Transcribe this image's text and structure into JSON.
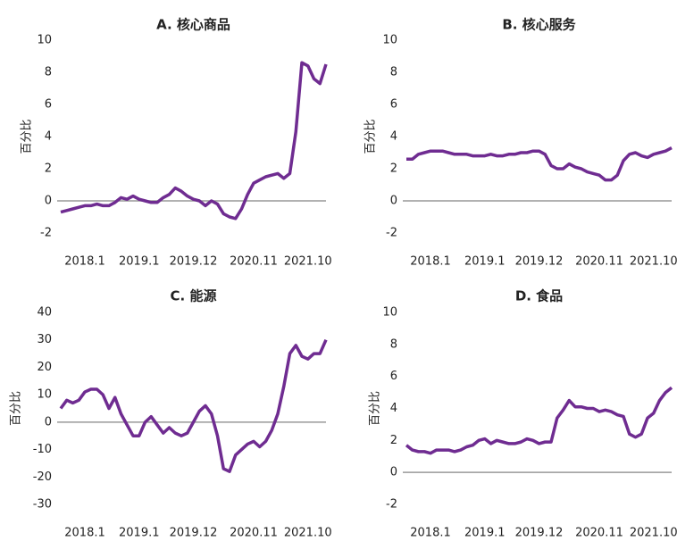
{
  "chart_data": [
    {
      "type": "line",
      "title": "A. 核心商品",
      "ylabel": "百分比",
      "categories": [
        null,
        null,
        null,
        null,
        "2018.1",
        null,
        null,
        null,
        null,
        null,
        null,
        null,
        null,
        "2019.1",
        null,
        null,
        null,
        null,
        null,
        null,
        null,
        null,
        "2019.12",
        null,
        null,
        null,
        null,
        null,
        null,
        null,
        null,
        null,
        "2020.11",
        null,
        null,
        null,
        null,
        null,
        null,
        null,
        null,
        "2021.10",
        null,
        null,
        null
      ],
      "series": [
        {
          "name": "核心商品",
          "color": "#6f2c91",
          "values": [
            -0.7,
            -0.6,
            -0.5,
            -0.4,
            -0.3,
            -0.3,
            -0.2,
            -0.3,
            -0.3,
            -0.1,
            0.2,
            0.1,
            0.3,
            0.1,
            0,
            -0.1,
            -0.1,
            0.2,
            0.4,
            0.8,
            0.6,
            0.3,
            0.1,
            0,
            -0.3,
            0,
            -0.2,
            -0.8,
            -1.0,
            -1.1,
            -0.5,
            0.4,
            1.1,
            1.3,
            1.5,
            1.6,
            1.7,
            1.4,
            1.7,
            4.3,
            8.6,
            8.4,
            7.6,
            7.3,
            8.5
          ]
        }
      ],
      "ylim": [
        -2,
        10
      ],
      "yticks": [
        -2,
        0,
        2,
        4,
        6,
        8,
        10
      ]
    },
    {
      "type": "line",
      "title": "B. 核心服务",
      "ylabel": "百分比",
      "categories": [
        null,
        null,
        null,
        null,
        "2018.1",
        null,
        null,
        null,
        null,
        null,
        null,
        null,
        null,
        "2019.1",
        null,
        null,
        null,
        null,
        null,
        null,
        null,
        null,
        "2019.12",
        null,
        null,
        null,
        null,
        null,
        null,
        null,
        null,
        null,
        "2020.11",
        null,
        null,
        null,
        null,
        null,
        null,
        null,
        null,
        "2021.10",
        null,
        null,
        null
      ],
      "series": [
        {
          "name": "核心服务",
          "color": "#6f2c91",
          "values": [
            2.6,
            2.6,
            2.9,
            3.0,
            3.1,
            3.1,
            3.1,
            3.0,
            2.9,
            2.9,
            2.9,
            2.8,
            2.8,
            2.8,
            2.9,
            2.8,
            2.8,
            2.9,
            2.9,
            3.0,
            3.0,
            3.1,
            3.1,
            2.9,
            2.2,
            2.0,
            2.0,
            2.3,
            2.1,
            2.0,
            1.8,
            1.7,
            1.6,
            1.3,
            1.3,
            1.6,
            2.5,
            2.9,
            3.0,
            2.8,
            2.7,
            2.9,
            3.0,
            3.1,
            3.3
          ]
        }
      ],
      "ylim": [
        -2,
        10
      ],
      "yticks": [
        -2,
        0,
        2,
        4,
        6,
        8,
        10
      ]
    },
    {
      "type": "line",
      "title": "C. 能源",
      "ylabel": "百分比",
      "categories": [
        null,
        null,
        null,
        null,
        "2018.1",
        null,
        null,
        null,
        null,
        null,
        null,
        null,
        null,
        "2019.1",
        null,
        null,
        null,
        null,
        null,
        null,
        null,
        null,
        "2019.12",
        null,
        null,
        null,
        null,
        null,
        null,
        null,
        null,
        null,
        "2020.11",
        null,
        null,
        null,
        null,
        null,
        null,
        null,
        null,
        "2021.10",
        null,
        null,
        null
      ],
      "series": [
        {
          "name": "能源",
          "color": "#6f2c91",
          "values": [
            5,
            8,
            7,
            8,
            11,
            12,
            12,
            10,
            5,
            9,
            3,
            -1,
            -5,
            -5,
            0,
            2,
            -1,
            -4,
            -2,
            -4,
            -5,
            -4,
            0,
            4,
            6,
            3,
            -5,
            -17,
            -18,
            -12,
            -10,
            -8,
            -7,
            -9,
            -7,
            -3,
            3,
            13,
            25,
            28,
            24,
            23,
            25,
            25,
            30
          ]
        }
      ],
      "ylim": [
        -30,
        40
      ],
      "yticks": [
        -30,
        -20,
        -10,
        0,
        10,
        20,
        30,
        40
      ]
    },
    {
      "type": "line",
      "title": "D. 食品",
      "ylabel": "百分比",
      "categories": [
        null,
        null,
        null,
        null,
        "2018.1",
        null,
        null,
        null,
        null,
        null,
        null,
        null,
        null,
        "2019.1",
        null,
        null,
        null,
        null,
        null,
        null,
        null,
        null,
        "2019.12",
        null,
        null,
        null,
        null,
        null,
        null,
        null,
        null,
        null,
        "2020.11",
        null,
        null,
        null,
        null,
        null,
        null,
        null,
        null,
        "2021.10",
        null,
        null,
        null
      ],
      "series": [
        {
          "name": "食品",
          "color": "#6f2c91",
          "values": [
            1.7,
            1.4,
            1.3,
            1.3,
            1.2,
            1.4,
            1.4,
            1.4,
            1.3,
            1.4,
            1.6,
            1.7,
            2.0,
            2.1,
            1.8,
            2.0,
            1.9,
            1.8,
            1.8,
            1.9,
            2.1,
            2.0,
            1.8,
            1.9,
            1.9,
            3.4,
            3.9,
            4.5,
            4.1,
            4.1,
            4.0,
            4.0,
            3.8,
            3.9,
            3.8,
            3.6,
            3.5,
            2.4,
            2.2,
            2.4,
            3.4,
            3.7,
            4.5,
            5.0,
            5.3
          ]
        }
      ],
      "ylim": [
        -2,
        10
      ],
      "yticks": [
        -2,
        0,
        2,
        4,
        6,
        8,
        10
      ]
    }
  ]
}
